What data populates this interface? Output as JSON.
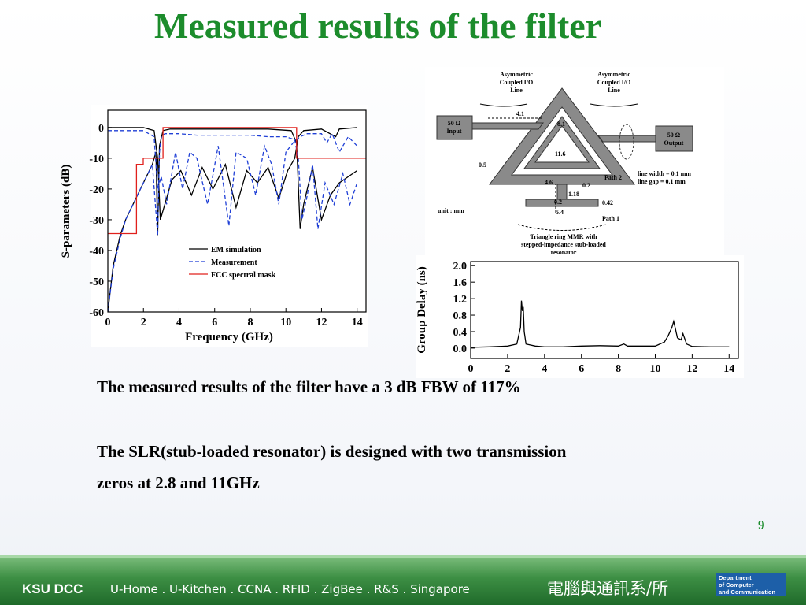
{
  "header": {
    "title": "Measured results of the filter"
  },
  "chart_data": [
    {
      "type": "line",
      "ylabel": "S-parameters (dB)",
      "xlabel": "Frequency (GHz)",
      "xlim": [
        0,
        14.5
      ],
      "ylim": [
        -60,
        5.6
      ],
      "xticks": [
        0,
        2,
        4,
        6,
        8,
        10,
        12,
        14
      ],
      "yticks": [
        0,
        -10,
        -20,
        -30,
        -40,
        -50,
        -60
      ],
      "series": [
        {
          "name": "EM simulation",
          "color": "#000000",
          "style": "solid",
          "x": [
            0,
            0.3,
            0.7,
            1,
            1.5,
            2,
            2.5,
            2.7,
            2.8,
            2.9,
            3.1,
            3.5,
            5,
            7,
            9,
            10.3,
            10.6,
            10.8,
            11,
            11.2,
            11.5,
            12,
            12.5,
            13,
            14
          ],
          "values": [
            -60,
            -45,
            -35,
            -30,
            -24,
            -18,
            -12,
            -8,
            -35,
            -6,
            -1,
            -0.5,
            -0.5,
            -0.5,
            -0.5,
            -1,
            -5,
            -33,
            -25,
            -20,
            -13,
            -30,
            -22,
            -18,
            -14
          ]
        },
        {
          "color": "#000000",
          "style": "solid",
          "x": [
            0,
            2,
            2.6,
            2.8,
            2.95,
            3.2,
            3.6,
            4.1,
            4.7,
            5.3,
            5.9,
            6.6,
            7.2,
            7.8,
            8.4,
            9,
            9.6,
            10.1,
            10.5,
            10.7,
            11,
            12,
            12.8,
            13,
            14
          ],
          "values": [
            0,
            0,
            -1,
            -10,
            -30,
            -25,
            -17,
            -14,
            -22,
            -13,
            -20,
            -12,
            -26,
            -14,
            -18,
            -13,
            -23,
            -14,
            -10,
            -3,
            -1,
            -0.5,
            -3,
            -0.5,
            0
          ]
        },
        {
          "name": "Measurement",
          "color": "#1f3fd6",
          "style": "dashed",
          "x": [
            0,
            0.3,
            0.7,
            1,
            1.5,
            2,
            2.5,
            2.8,
            2.9,
            3,
            3.2,
            4,
            5,
            6,
            7,
            8,
            9,
            10,
            10.5,
            10.7,
            10.9,
            11.2,
            11.5,
            11.8,
            12.2,
            12.7,
            13.2,
            13.6,
            14
          ],
          "values": [
            -60,
            -46,
            -36,
            -30,
            -24,
            -18,
            -12,
            -35,
            -8,
            -3,
            -2,
            -2,
            -2.5,
            -2.5,
            -2.5,
            -2.5,
            -3,
            -3,
            -4,
            -10,
            -30,
            -22,
            -12,
            -33,
            -18,
            -25,
            -15,
            -25,
            -18
          ]
        },
        {
          "color": "#1f3fd6",
          "style": "dashed",
          "x": [
            0,
            2,
            2.6,
            2.8,
            3,
            3.3,
            3.8,
            4.2,
            4.6,
            5,
            5.6,
            6.2,
            6.8,
            7.2,
            7.8,
            8.3,
            8.8,
            9.2,
            9.6,
            10,
            10.4,
            10.6,
            10.8,
            11.2,
            12,
            12.3,
            12.6,
            13,
            13.5,
            14
          ],
          "values": [
            -1,
            -1,
            -3,
            -20,
            -16,
            -25,
            -8,
            -20,
            -8,
            -10,
            -25,
            -6,
            -32,
            -8,
            -10,
            -22,
            -6,
            -12,
            -25,
            -8,
            -5,
            -4,
            -3,
            -2,
            -2,
            -5,
            -2,
            -8,
            -3,
            -6
          ]
        },
        {
          "name": "FCC spectral mask",
          "color": "#e0201c",
          "style": "solid",
          "x": [
            0,
            1.61,
            1.61,
            1.99,
            1.99,
            3.1,
            3.1,
            10.6,
            10.6,
            14.5
          ],
          "values": [
            -34.5,
            -34.5,
            -12,
            -12,
            -10,
            -10,
            0,
            0,
            -10,
            -10
          ]
        }
      ]
    },
    {
      "type": "line",
      "ylabel": "Group Delay (ns)",
      "xlim": [
        0,
        14.5
      ],
      "ylim": [
        -0.25,
        2.1
      ],
      "xticks": [
        0,
        2,
        4,
        6,
        8,
        10,
        12,
        14
      ],
      "yticks": [
        {
          "value": 0,
          "label": "0.0"
        },
        {
          "value": 0.4,
          "label": "0.4"
        },
        {
          "value": 0.8,
          "label": "0.8"
        },
        {
          "value": 1.2,
          "label": "1.2"
        },
        {
          "value": 1.6,
          "label": "1.6"
        },
        {
          "value": 2,
          "label": "2.0"
        }
      ],
      "series": [
        {
          "color": "#000000",
          "style": "solid",
          "x": [
            0,
            1,
            2,
            2.5,
            2.7,
            2.75,
            2.8,
            2.85,
            2.9,
            3,
            3.5,
            4,
            5,
            6,
            7,
            8,
            8.3,
            8.5,
            9,
            10,
            10.5,
            10.7,
            10.9,
            11,
            11.1,
            11.2,
            11.4,
            11.5,
            11.7,
            12,
            13,
            14
          ],
          "values": [
            0.02,
            0.03,
            0.05,
            0.1,
            0.5,
            1.15,
            0.9,
            1.0,
            0.4,
            0.1,
            0.05,
            0.03,
            0.03,
            0.05,
            0.06,
            0.05,
            0.1,
            0.05,
            0.05,
            0.05,
            0.15,
            0.3,
            0.5,
            0.65,
            0.45,
            0.25,
            0.2,
            0.35,
            0.1,
            0.04,
            0.03,
            0.03
          ]
        }
      ]
    }
  ],
  "diagram": {
    "left_label": [
      "Asymmetric",
      "Coupled I/O",
      "Line"
    ],
    "right_label": [
      "Asymmetric",
      "Coupled I/O",
      "Line"
    ],
    "input": [
      "50 Ω",
      "Input"
    ],
    "output": [
      "50 Ω",
      "Output"
    ],
    "dims": {
      "d41": "4.1",
      "d81": "8.1",
      "d116": "11.6",
      "d05": "0.5",
      "d46": "4.6",
      "d02a": "0.2",
      "d118": "1.18",
      "d02b": "0.2",
      "d042": "0.42",
      "d54": "5.4"
    },
    "path2": "Path 2",
    "path1": "Path 1",
    "unit": "unit : mm",
    "line_width": "line width = 0.1 mm",
    "line_gap": "line gap = 0.1 mm",
    "caption": [
      "Triangle ring MMR with",
      "stepped-impedance stub-loaded",
      "resonator"
    ]
  },
  "body": {
    "paragraph_1": "The measured results of the filter have a 3 dB FBW of 117%",
    "paragraph_2": [
      "The SLR(stub-loaded resonator) is designed with two transmission",
      "zeros at 2.8 and 11GHz"
    ]
  },
  "page_number": "9",
  "footer": {
    "brand": "KSU DCC",
    "tagline": "U-Home . U-Kitchen . CCNA . RFID . ZigBee . R&S . Singapore",
    "department_cn": "電腦與通訊系/所",
    "department_en": [
      "Department",
      "of Computer",
      "and Communication"
    ]
  }
}
